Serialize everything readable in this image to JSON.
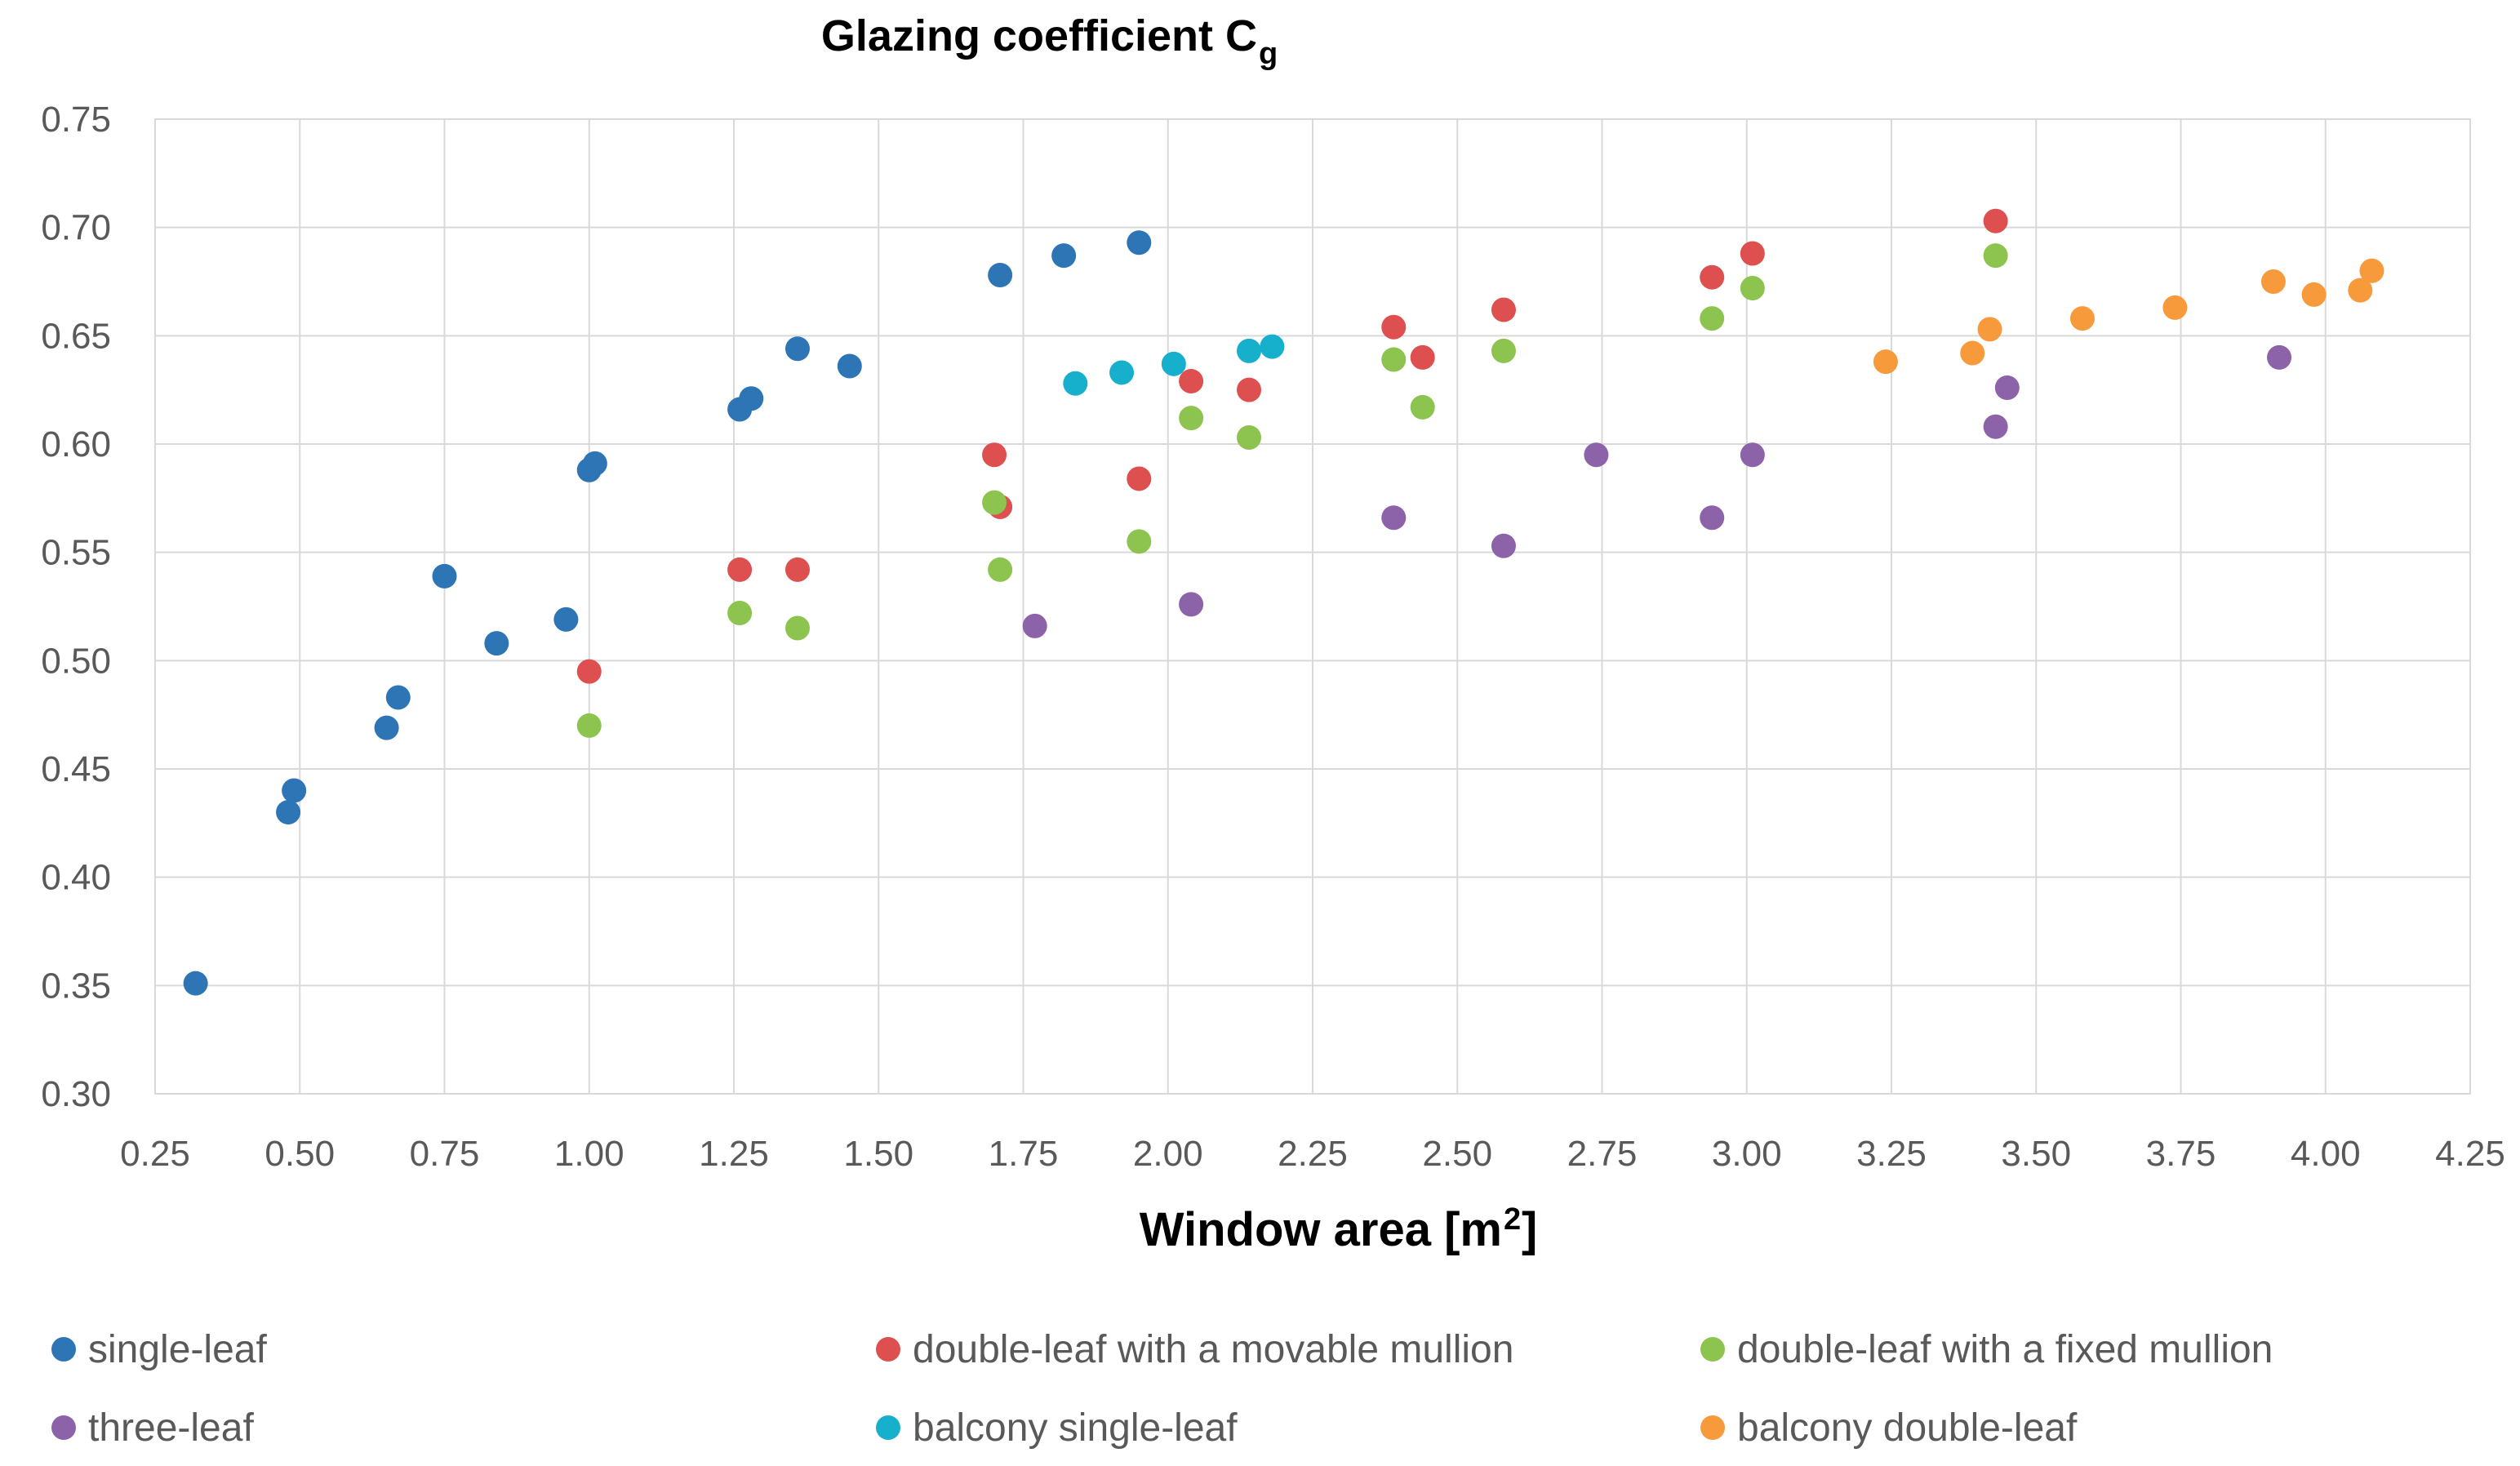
{
  "chart_data": {
    "type": "scatter",
    "title": "Glazing coefficient C",
    "title_subscript": "g",
    "xlabel": "Window area [m",
    "xlabel_superscript": "2",
    "xlabel_suffix": "]",
    "ylabel": "",
    "xlim": [
      0.25,
      4.25
    ],
    "ylim": [
      0.3,
      0.75
    ],
    "x_ticks": [
      "0.25",
      "0.50",
      "0.75",
      "1.00",
      "1.25",
      "1.50",
      "1.75",
      "2.00",
      "2.25",
      "2.50",
      "2.75",
      "3.00",
      "3.25",
      "3.50",
      "3.75",
      "4.00",
      "4.25"
    ],
    "y_ticks": [
      "0.30",
      "0.35",
      "0.40",
      "0.45",
      "0.50",
      "0.55",
      "0.60",
      "0.65",
      "0.70",
      "0.75"
    ],
    "grid": true,
    "legend_position": "bottom",
    "series": [
      {
        "name": "single-leaf",
        "color": "#2e75b6",
        "points": [
          [
            0.32,
            0.351
          ],
          [
            0.48,
            0.43
          ],
          [
            0.49,
            0.44
          ],
          [
            0.65,
            0.469
          ],
          [
            0.67,
            0.483
          ],
          [
            0.75,
            0.539
          ],
          [
            0.84,
            0.508
          ],
          [
            0.96,
            0.519
          ],
          [
            1.0,
            0.588
          ],
          [
            1.01,
            0.591
          ],
          [
            1.26,
            0.616
          ],
          [
            1.28,
            0.621
          ],
          [
            1.36,
            0.644
          ],
          [
            1.45,
            0.636
          ],
          [
            1.71,
            0.678
          ],
          [
            1.82,
            0.687
          ],
          [
            1.95,
            0.693
          ]
        ]
      },
      {
        "name": "double-leaf with a movable mullion",
        "color": "#de4f4f",
        "points": [
          [
            1.0,
            0.495
          ],
          [
            1.26,
            0.542
          ],
          [
            1.36,
            0.542
          ],
          [
            1.7,
            0.595
          ],
          [
            1.71,
            0.571
          ],
          [
            1.95,
            0.584
          ],
          [
            2.04,
            0.629
          ],
          [
            2.14,
            0.625
          ],
          [
            2.39,
            0.654
          ],
          [
            2.44,
            0.64
          ],
          [
            2.58,
            0.662
          ],
          [
            2.94,
            0.677
          ],
          [
            3.01,
            0.688
          ],
          [
            3.43,
            0.703
          ]
        ]
      },
      {
        "name": "double-leaf with a fixed mullion",
        "color": "#8dc44f",
        "points": [
          [
            1.0,
            0.47
          ],
          [
            1.26,
            0.522
          ],
          [
            1.36,
            0.515
          ],
          [
            1.7,
            0.573
          ],
          [
            1.71,
            0.542
          ],
          [
            1.95,
            0.555
          ],
          [
            2.04,
            0.612
          ],
          [
            2.14,
            0.603
          ],
          [
            2.39,
            0.639
          ],
          [
            2.44,
            0.617
          ],
          [
            2.58,
            0.643
          ],
          [
            2.94,
            0.658
          ],
          [
            3.01,
            0.672
          ],
          [
            3.43,
            0.687
          ]
        ]
      },
      {
        "name": "three-leaf",
        "color": "#8c62a8",
        "points": [
          [
            1.77,
            0.516
          ],
          [
            2.04,
            0.526
          ],
          [
            2.39,
            0.566
          ],
          [
            2.58,
            0.553
          ],
          [
            2.74,
            0.595
          ],
          [
            2.94,
            0.566
          ],
          [
            3.01,
            0.595
          ],
          [
            3.43,
            0.608
          ],
          [
            3.45,
            0.626
          ],
          [
            3.92,
            0.64
          ]
        ]
      },
      {
        "name": "balcony single-leaf",
        "color": "#17b0cc",
        "points": [
          [
            1.84,
            0.628
          ],
          [
            1.92,
            0.633
          ],
          [
            2.01,
            0.637
          ],
          [
            2.14,
            0.643
          ],
          [
            2.18,
            0.645
          ]
        ]
      },
      {
        "name": "balcony double-leaf",
        "color": "#f79a3c",
        "points": [
          [
            3.24,
            0.638
          ],
          [
            3.39,
            0.642
          ],
          [
            3.42,
            0.653
          ],
          [
            3.58,
            0.658
          ],
          [
            3.74,
            0.663
          ],
          [
            3.91,
            0.675
          ],
          [
            3.98,
            0.669
          ],
          [
            4.06,
            0.671
          ],
          [
            4.08,
            0.68
          ]
        ]
      }
    ]
  }
}
